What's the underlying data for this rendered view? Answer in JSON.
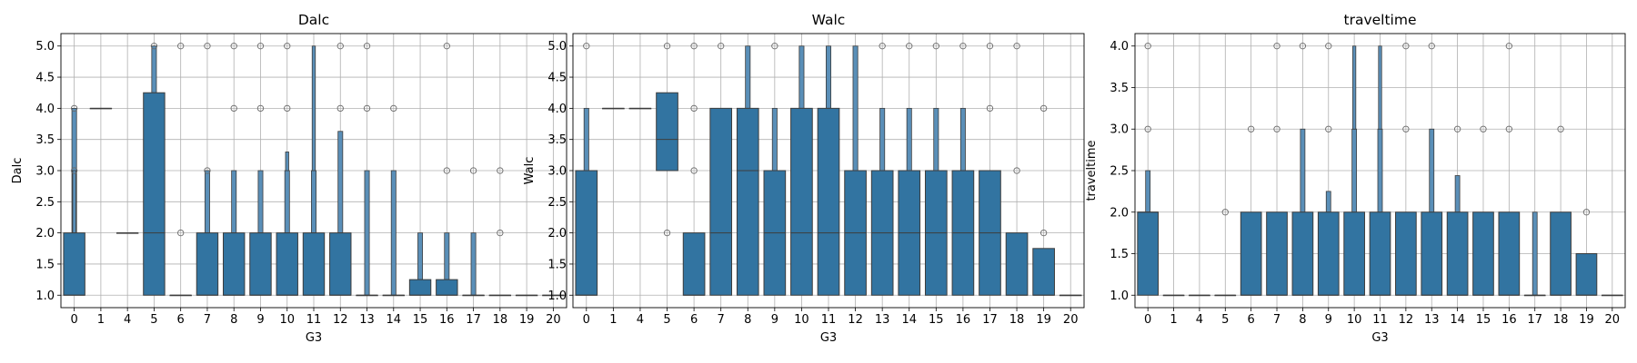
{
  "chart_data": [
    {
      "type": "box",
      "title": "Dalc",
      "xlabel": "G3",
      "ylabel": "Dalc",
      "categories": [
        "0",
        "1",
        "4",
        "5",
        "6",
        "7",
        "8",
        "9",
        "10",
        "11",
        "12",
        "13",
        "14",
        "15",
        "16",
        "17",
        "18",
        "19",
        "20"
      ],
      "ylim": [
        0.8,
        5.2
      ],
      "yticks": [
        1.0,
        1.5,
        2.0,
        2.5,
        3.0,
        3.5,
        4.0,
        4.5,
        5.0
      ],
      "grid": true,
      "color": "#3274a1",
      "boxes": [
        {
          "q1": 1,
          "med": 1,
          "q3": 2,
          "ext": [
            {
              "lo": 2,
              "hi": 4
            },
            {
              "lo": 2,
              "hi": 3
            }
          ],
          "out": [
            3,
            4
          ]
        },
        {
          "q1": 4,
          "med": 4,
          "q3": 4,
          "out": []
        },
        {
          "q1": 2,
          "med": 2,
          "q3": 2,
          "out": []
        },
        {
          "q1": 1,
          "med": 2,
          "q3": 4.25,
          "ext": [
            {
              "lo": 4.25,
              "hi": 5
            }
          ],
          "out": [
            5
          ]
        },
        {
          "q1": 1,
          "med": 1,
          "q3": 1,
          "out": [
            2,
            5
          ]
        },
        {
          "q1": 1,
          "med": 1,
          "q3": 2,
          "ext": [
            {
              "lo": 2,
              "hi": 3
            }
          ],
          "out": [
            3,
            5
          ]
        },
        {
          "q1": 1,
          "med": 1,
          "q3": 2,
          "ext": [
            {
              "lo": 2,
              "hi": 3
            }
          ],
          "out": [
            4,
            5
          ]
        },
        {
          "q1": 1,
          "med": 1,
          "q3": 2,
          "ext": [
            {
              "lo": 2,
              "hi": 3
            }
          ],
          "out": [
            4,
            5
          ]
        },
        {
          "q1": 1,
          "med": 1,
          "q3": 2,
          "ext": [
            {
              "lo": 2,
              "hi": 3
            },
            {
              "lo": 3,
              "hi": 3.3
            }
          ],
          "out": [
            4,
            5
          ]
        },
        {
          "q1": 1,
          "med": 1,
          "q3": 2,
          "ext": [
            {
              "lo": 2,
              "hi": 3
            },
            {
              "lo": 3,
              "hi": 5
            }
          ],
          "out": []
        },
        {
          "q1": 1,
          "med": 1,
          "q3": 2,
          "ext": [
            {
              "lo": 2,
              "hi": 3.63
            }
          ],
          "out": [
            4,
            5
          ]
        },
        {
          "q1": 1,
          "med": 1,
          "q3": 1,
          "ext": [
            {
              "lo": 1,
              "hi": 3
            }
          ],
          "out": [
            4,
            5
          ]
        },
        {
          "q1": 1,
          "med": 1,
          "q3": 1,
          "ext": [
            {
              "lo": 1,
              "hi": 3
            }
          ],
          "out": [
            4
          ]
        },
        {
          "q1": 1,
          "med": 1,
          "q3": 1.25,
          "ext": [
            {
              "lo": 1.25,
              "hi": 2
            }
          ],
          "out": []
        },
        {
          "q1": 1,
          "med": 1,
          "q3": 1.25,
          "ext": [
            {
              "lo": 1.25,
              "hi": 2
            }
          ],
          "out": [
            3,
            5
          ]
        },
        {
          "q1": 1,
          "med": 1,
          "q3": 1,
          "ext": [
            {
              "lo": 1,
              "hi": 2
            }
          ],
          "out": [
            3
          ]
        },
        {
          "q1": 1,
          "med": 1,
          "q3": 1,
          "out": [
            2,
            3
          ]
        },
        {
          "q1": 1,
          "med": 1,
          "q3": 1,
          "out": []
        },
        {
          "q1": 1,
          "med": 1,
          "q3": 1,
          "out": []
        }
      ]
    },
    {
      "type": "box",
      "title": "Walc",
      "xlabel": "G3",
      "ylabel": "Walc",
      "categories": [
        "0",
        "1",
        "4",
        "5",
        "6",
        "7",
        "8",
        "9",
        "10",
        "11",
        "12",
        "13",
        "14",
        "15",
        "16",
        "17",
        "18",
        "19",
        "20"
      ],
      "ylim": [
        0.8,
        5.2
      ],
      "yticks": [
        1.0,
        1.5,
        2.0,
        2.5,
        3.0,
        3.5,
        4.0,
        4.5,
        5.0
      ],
      "grid": true,
      "color": "#3274a1",
      "boxes": [
        {
          "q1": 1,
          "med": 1,
          "q3": 3,
          "ext": [
            {
              "lo": 3,
              "hi": 4
            }
          ],
          "out": [
            5
          ]
        },
        {
          "q1": 4,
          "med": 4,
          "q3": 4,
          "out": []
        },
        {
          "q1": 4,
          "med": 4,
          "q3": 4,
          "out": []
        },
        {
          "q1": 3,
          "med": 3.5,
          "q3": 4.25,
          "out": [
            2,
            5
          ]
        },
        {
          "q1": 1,
          "med": 1,
          "q3": 2,
          "out": [
            3,
            4,
            5
          ]
        },
        {
          "q1": 1,
          "med": 2,
          "q3": 4,
          "out": [
            5
          ]
        },
        {
          "q1": 1,
          "med": 3,
          "q3": 4,
          "ext": [
            {
              "lo": 4,
              "hi": 5
            }
          ],
          "out": []
        },
        {
          "q1": 1,
          "med": 2,
          "q3": 3,
          "ext": [
            {
              "lo": 3,
              "hi": 4
            }
          ],
          "out": [
            5
          ]
        },
        {
          "q1": 1,
          "med": 2,
          "q3": 4,
          "ext": [
            {
              "lo": 4,
              "hi": 5
            }
          ],
          "out": []
        },
        {
          "q1": 1,
          "med": 2,
          "q3": 4,
          "ext": [
            {
              "lo": 4,
              "hi": 5
            }
          ],
          "out": []
        },
        {
          "q1": 1,
          "med": 2,
          "q3": 3,
          "ext": [
            {
              "lo": 3,
              "hi": 5
            }
          ],
          "out": []
        },
        {
          "q1": 1,
          "med": 2,
          "q3": 3,
          "ext": [
            {
              "lo": 3,
              "hi": 4
            }
          ],
          "out": [
            5
          ]
        },
        {
          "q1": 1,
          "med": 2,
          "q3": 3,
          "ext": [
            {
              "lo": 3,
              "hi": 4
            }
          ],
          "out": [
            5
          ]
        },
        {
          "q1": 1,
          "med": 2,
          "q3": 3,
          "ext": [
            {
              "lo": 3,
              "hi": 4
            }
          ],
          "out": [
            5
          ]
        },
        {
          "q1": 1,
          "med": 2,
          "q3": 3,
          "ext": [
            {
              "lo": 3,
              "hi": 4
            }
          ],
          "out": [
            5
          ]
        },
        {
          "q1": 1,
          "med": 2,
          "q3": 3,
          "out": [
            4,
            5
          ]
        },
        {
          "q1": 1,
          "med": 1,
          "q3": 2,
          "out": [
            3,
            5
          ]
        },
        {
          "q1": 1,
          "med": 1,
          "q3": 1.75,
          "out": [
            2,
            4
          ]
        },
        {
          "q1": 1,
          "med": 1,
          "q3": 1,
          "out": []
        }
      ]
    },
    {
      "type": "box",
      "title": "traveltime",
      "xlabel": "G3",
      "ylabel": "traveltime",
      "categories": [
        "0",
        "1",
        "4",
        "5",
        "6",
        "7",
        "8",
        "9",
        "10",
        "11",
        "12",
        "13",
        "14",
        "15",
        "16",
        "17",
        "18",
        "19",
        "20"
      ],
      "ylim": [
        0.85,
        4.15
      ],
      "yticks": [
        1.0,
        1.5,
        2.0,
        2.5,
        3.0,
        3.5,
        4.0
      ],
      "grid": true,
      "color": "#3274a1",
      "boxes": [
        {
          "q1": 1,
          "med": 2,
          "q3": 2,
          "ext": [
            {
              "lo": 2,
              "hi": 2.5
            }
          ],
          "out": [
            3,
            4
          ]
        },
        {
          "q1": 1,
          "med": 1,
          "q3": 1,
          "out": []
        },
        {
          "q1": 1,
          "med": 1,
          "q3": 1,
          "out": []
        },
        {
          "q1": 1,
          "med": 1,
          "q3": 1,
          "out": [
            2
          ]
        },
        {
          "q1": 1,
          "med": 1,
          "q3": 2,
          "out": [
            3
          ]
        },
        {
          "q1": 1,
          "med": 1,
          "q3": 2,
          "out": [
            3,
            4
          ]
        },
        {
          "q1": 1,
          "med": 1,
          "q3": 2,
          "ext": [
            {
              "lo": 2,
              "hi": 3
            }
          ],
          "out": [
            4
          ]
        },
        {
          "q1": 1,
          "med": 1,
          "q3": 2,
          "ext": [
            {
              "lo": 2,
              "hi": 2.25
            }
          ],
          "out": [
            3,
            4
          ]
        },
        {
          "q1": 1,
          "med": 1,
          "q3": 2,
          "ext": [
            {
              "lo": 2,
              "hi": 3
            },
            {
              "lo": 3,
              "hi": 4
            }
          ],
          "out": []
        },
        {
          "q1": 1,
          "med": 1,
          "q3": 2,
          "ext": [
            {
              "lo": 2,
              "hi": 3
            },
            {
              "lo": 3,
              "hi": 4
            }
          ],
          "out": []
        },
        {
          "q1": 1,
          "med": 1,
          "q3": 2,
          "out": [
            3,
            4
          ]
        },
        {
          "q1": 1,
          "med": 1,
          "q3": 2,
          "ext": [
            {
              "lo": 2,
              "hi": 3
            }
          ],
          "out": [
            4
          ]
        },
        {
          "q1": 1,
          "med": 1,
          "q3": 2,
          "ext": [
            {
              "lo": 2,
              "hi": 2.44
            }
          ],
          "out": [
            3
          ]
        },
        {
          "q1": 1,
          "med": 1,
          "q3": 2,
          "out": [
            3
          ]
        },
        {
          "q1": 1,
          "med": 1,
          "q3": 2,
          "out": [
            3,
            4
          ]
        },
        {
          "q1": 1,
          "med": 1,
          "q3": 1,
          "ext": [
            {
              "lo": 1,
              "hi": 2
            }
          ],
          "out": []
        },
        {
          "q1": 1,
          "med": 1,
          "q3": 2,
          "out": [
            3
          ]
        },
        {
          "q1": 1,
          "med": 1,
          "q3": 1.5,
          "out": [
            2
          ]
        },
        {
          "q1": 1,
          "med": 1,
          "q3": 1,
          "out": []
        }
      ]
    }
  ]
}
